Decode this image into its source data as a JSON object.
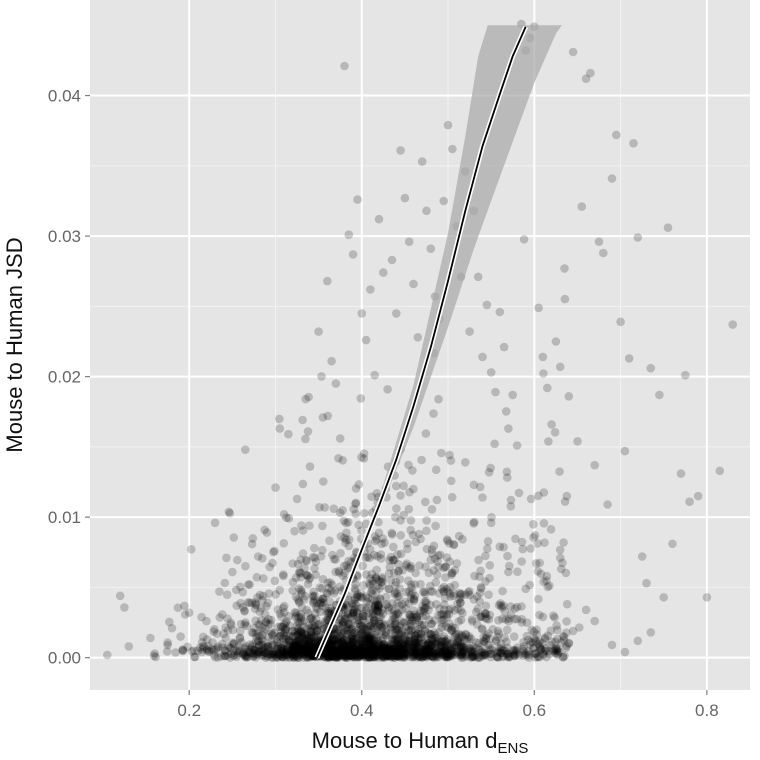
{
  "chart_data": {
    "type": "scatter",
    "title": "",
    "xlabel": "Mouse to Human d",
    "xlabel_subscript": "ENS",
    "ylabel": "Mouse to Human JSD",
    "xlim": [
      0.085,
      0.85
    ],
    "ylim": [
      -0.0023,
      0.0468
    ],
    "x_ticks": [
      0.2,
      0.4,
      0.6,
      0.8
    ],
    "x_tick_labels": [
      "0.2",
      "0.4",
      "0.6",
      "0.8"
    ],
    "y_ticks": [
      0.0,
      0.01,
      0.02,
      0.03,
      0.04
    ],
    "y_tick_labels": [
      "0.00",
      "0.01",
      "0.02",
      "0.03",
      "0.04"
    ],
    "grid": true,
    "legend": "none",
    "colors": {
      "panel": "#e5e5e5",
      "grid": "#ffffff",
      "points": "#000000",
      "band": "#a8a8a8",
      "fit": "#000000"
    },
    "series": [
      {
        "kind": "points",
        "points": [
          [
            0.12,
            0.0044
          ],
          [
            0.105,
            0.0002
          ],
          [
            0.13,
            0.0008
          ],
          [
            0.155,
            0.0014
          ],
          [
            0.16,
            0.0003
          ],
          [
            0.175,
            0.0009
          ],
          [
            0.18,
            0.0021
          ],
          [
            0.19,
            0.0015
          ],
          [
            0.2,
            0.0032
          ],
          [
            0.21,
            0.0005
          ],
          [
            0.215,
            0.0011
          ],
          [
            0.22,
            0.0026
          ],
          [
            0.23,
            0.0096
          ],
          [
            0.235,
            0.0047
          ],
          [
            0.24,
            0.0017
          ],
          [
            0.25,
            0.0061
          ],
          [
            0.255,
            0.0037
          ],
          [
            0.26,
            0.0024
          ],
          [
            0.265,
            0.0148
          ],
          [
            0.27,
            0.0052
          ],
          [
            0.28,
            0.0072
          ],
          [
            0.285,
            0.0041
          ],
          [
            0.29,
            0.0089
          ],
          [
            0.3,
            0.0121
          ],
          [
            0.305,
            0.0163
          ],
          [
            0.31,
            0.0102
          ],
          [
            0.315,
            0.0159
          ],
          [
            0.32,
            0.0067
          ],
          [
            0.325,
            0.0113
          ],
          [
            0.33,
            0.0094
          ],
          [
            0.335,
            0.0184
          ],
          [
            0.34,
            0.0136
          ],
          [
            0.345,
            0.0078
          ],
          [
            0.35,
            0.0232
          ],
          [
            0.355,
            0.0171
          ],
          [
            0.36,
            0.0268
          ],
          [
            0.365,
            0.0211
          ],
          [
            0.37,
            0.0195
          ],
          [
            0.375,
            0.0156
          ],
          [
            0.38,
            0.0421
          ],
          [
            0.385,
            0.0301
          ],
          [
            0.39,
            0.0287
          ],
          [
            0.395,
            0.0326
          ],
          [
            0.4,
            0.0245
          ],
          [
            0.405,
            0.0226
          ],
          [
            0.41,
            0.0262
          ],
          [
            0.415,
            0.0201
          ],
          [
            0.42,
            0.0312
          ],
          [
            0.425,
            0.0274
          ],
          [
            0.43,
            0.0191
          ],
          [
            0.435,
            0.0283
          ],
          [
            0.44,
            0.0245
          ],
          [
            0.445,
            0.0361
          ],
          [
            0.45,
            0.0327
          ],
          [
            0.455,
            0.0296
          ],
          [
            0.46,
            0.0266
          ],
          [
            0.465,
            0.0228
          ],
          [
            0.47,
            0.0353
          ],
          [
            0.475,
            0.0318
          ],
          [
            0.48,
            0.0291
          ],
          [
            0.485,
            0.0257
          ],
          [
            0.49,
            0.0241
          ],
          [
            0.495,
            0.0325
          ],
          [
            0.5,
            0.0379
          ],
          [
            0.505,
            0.0362
          ],
          [
            0.51,
            0.0307
          ],
          [
            0.515,
            0.0271
          ],
          [
            0.52,
            0.0346
          ],
          [
            0.525,
            0.0232
          ],
          [
            0.53,
            0.0318
          ],
          [
            0.535,
            0.0271
          ],
          [
            0.54,
            0.0214
          ],
          [
            0.545,
            0.0251
          ],
          [
            0.55,
            0.0203
          ],
          [
            0.555,
            0.0189
          ],
          [
            0.56,
            0.0246
          ],
          [
            0.565,
            0.0221
          ],
          [
            0.57,
            0.0163
          ],
          [
            0.575,
            0.0187
          ],
          [
            0.58,
            0.0151
          ],
          [
            0.585,
            0.0451
          ],
          [
            0.59,
            0.0432
          ],
          [
            0.595,
            0.0441
          ],
          [
            0.6,
            0.0449
          ],
          [
            0.605,
            0.0249
          ],
          [
            0.61,
            0.0214
          ],
          [
            0.615,
            0.0192
          ],
          [
            0.62,
            0.0166
          ],
          [
            0.625,
            0.0225
          ],
          [
            0.63,
            0.0207
          ],
          [
            0.635,
            0.0277
          ],
          [
            0.64,
            0.0186
          ],
          [
            0.645,
            0.0431
          ],
          [
            0.65,
            0.0154
          ],
          [
            0.655,
            0.0321
          ],
          [
            0.66,
            0.0412
          ],
          [
            0.665,
            0.0416
          ],
          [
            0.67,
            0.0137
          ],
          [
            0.675,
            0.0296
          ],
          [
            0.68,
            0.0288
          ],
          [
            0.685,
            0.0109
          ],
          [
            0.69,
            0.0341
          ],
          [
            0.695,
            0.0372
          ],
          [
            0.7,
            0.0239
          ],
          [
            0.705,
            0.0147
          ],
          [
            0.71,
            0.0213
          ],
          [
            0.715,
            0.0366
          ],
          [
            0.72,
            0.0299
          ],
          [
            0.725,
            0.0072
          ],
          [
            0.73,
            0.0053
          ],
          [
            0.735,
            0.0206
          ],
          [
            0.745,
            0.0187
          ],
          [
            0.75,
            0.0043
          ],
          [
            0.755,
            0.0306
          ],
          [
            0.76,
            0.0081
          ],
          [
            0.77,
            0.0131
          ],
          [
            0.775,
            0.0201
          ],
          [
            0.78,
            0.0111
          ],
          [
            0.79,
            0.0115
          ],
          [
            0.8,
            0.0043
          ],
          [
            0.815,
            0.0133
          ],
          [
            0.83,
            0.0237
          ],
          [
            0.72,
            0.0012
          ],
          [
            0.735,
            0.0018
          ],
          [
            0.705,
            0.0004
          ],
          [
            0.69,
            0.0009
          ],
          [
            0.67,
            0.0026
          ],
          [
            0.66,
            0.0034
          ],
          [
            0.645,
            0.0019
          ],
          [
            0.625,
            0.0007
          ],
          [
            0.61,
            0.0029
          ],
          [
            0.6,
            0.0014
          ],
          [
            0.59,
            0.0049
          ],
          [
            0.58,
            0.0036
          ],
          [
            0.57,
            0.0061
          ],
          [
            0.56,
            0.0079
          ],
          [
            0.55,
            0.0096
          ],
          [
            0.54,
            0.0114
          ],
          [
            0.53,
            0.0123
          ],
          [
            0.52,
            0.0139
          ]
        ]
      },
      {
        "kind": "cloud",
        "n": 2600,
        "seed": 7,
        "x_center": 0.39,
        "x_spread": 0.075,
        "y_scale": 0.0049
      },
      {
        "kind": "fit_line",
        "points": [
          [
            0.348,
            0.0
          ],
          [
            0.36,
            0.0017
          ],
          [
            0.38,
            0.0045
          ],
          [
            0.4,
            0.0077
          ],
          [
            0.42,
            0.0108
          ],
          [
            0.44,
            0.0141
          ],
          [
            0.46,
            0.0179
          ],
          [
            0.48,
            0.0221
          ],
          [
            0.5,
            0.0268
          ],
          [
            0.52,
            0.0318
          ],
          [
            0.54,
            0.0364
          ],
          [
            0.56,
            0.0401
          ],
          [
            0.575,
            0.0428
          ],
          [
            0.59,
            0.0449
          ]
        ]
      },
      {
        "kind": "confidence_band",
        "upper": [
          [
            0.348,
            0.00025
          ],
          [
            0.38,
            0.0048
          ],
          [
            0.42,
            0.0113
          ],
          [
            0.46,
            0.0194
          ],
          [
            0.5,
            0.0302
          ],
          [
            0.52,
            0.0371
          ],
          [
            0.535,
            0.0428
          ],
          [
            0.546,
            0.045
          ]
        ],
        "lower": [
          [
            0.348,
            -0.00025
          ],
          [
            0.38,
            0.0042
          ],
          [
            0.42,
            0.0103
          ],
          [
            0.46,
            0.0164
          ],
          [
            0.5,
            0.0235
          ],
          [
            0.53,
            0.0291
          ],
          [
            0.56,
            0.0342
          ],
          [
            0.6,
            0.0409
          ],
          [
            0.625,
            0.0444
          ],
          [
            0.632,
            0.045
          ]
        ]
      }
    ]
  }
}
